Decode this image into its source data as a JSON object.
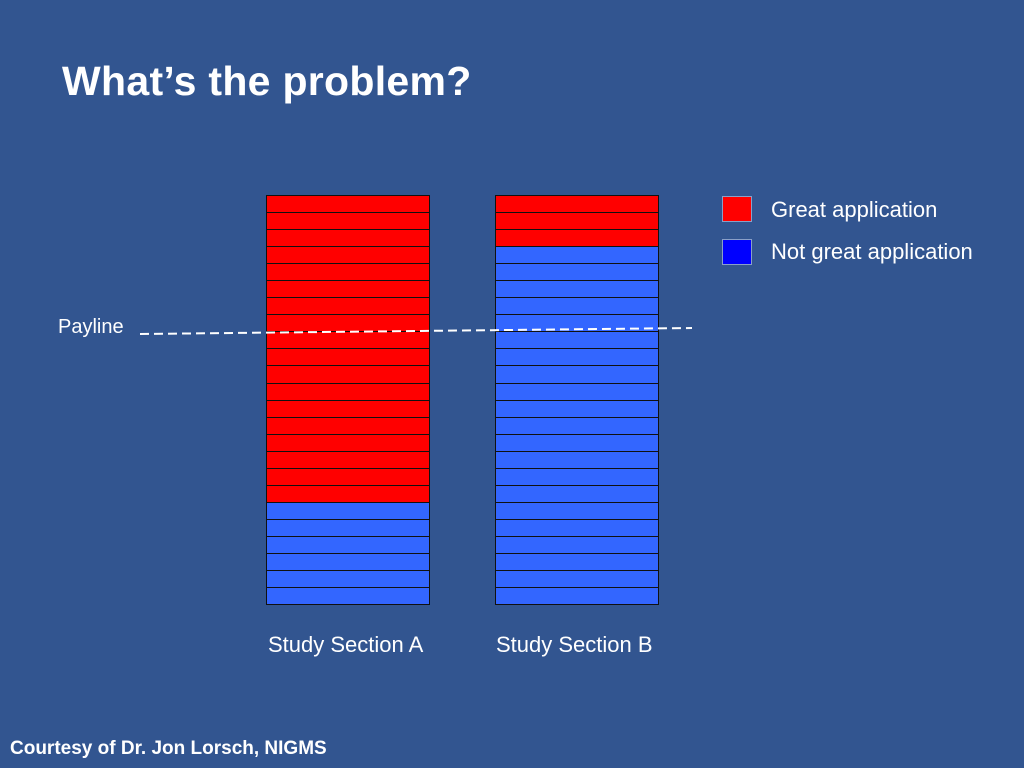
{
  "slide": {
    "title": "What’s the problem?",
    "footer": "Courtesy of Dr. Jon Lorsch, NIGMS",
    "payline_label": "Payline"
  },
  "legend": {
    "great": {
      "label": "Great application",
      "color": "#ff0000"
    },
    "not_great": {
      "label": "Not great application",
      "color": "#0000ff"
    }
  },
  "sections": [
    {
      "label": "Study Section A",
      "great": 18,
      "not_great": 6
    },
    {
      "label": "Study Section B",
      "great": 3,
      "not_great": 21
    }
  ],
  "colors": {
    "background": "#325590",
    "great_cell": "#ff0000",
    "not_great_cell": "#3366ff",
    "payline": "#ffffff"
  }
}
